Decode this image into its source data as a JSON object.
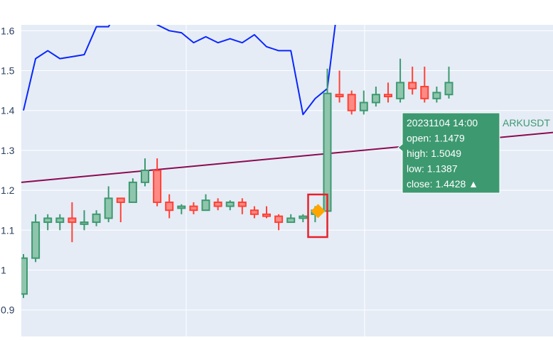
{
  "chart_data": {
    "type": "candlestick",
    "symbol": "ARKUSDT",
    "ylim": [
      0.85,
      1.66
    ],
    "y_ticks": [
      "0.9",
      "1",
      "1.1",
      "1.2",
      "1.3",
      "1.4",
      "1.5",
      "1.6"
    ],
    "grid": true,
    "candles": [
      {
        "o": 0.94,
        "h": 1.04,
        "l": 0.93,
        "c": 1.03
      },
      {
        "o": 1.03,
        "h": 1.14,
        "l": 1.02,
        "c": 1.12
      },
      {
        "o": 1.12,
        "h": 1.14,
        "l": 1.1,
        "c": 1.13
      },
      {
        "o": 1.12,
        "h": 1.14,
        "l": 1.1,
        "c": 1.13
      },
      {
        "o": 1.13,
        "h": 1.17,
        "l": 1.07,
        "c": 1.12
      },
      {
        "o": 1.115,
        "h": 1.15,
        "l": 1.1,
        "c": 1.12
      },
      {
        "o": 1.12,
        "h": 1.15,
        "l": 1.11,
        "c": 1.14
      },
      {
        "o": 1.13,
        "h": 1.21,
        "l": 1.12,
        "c": 1.18
      },
      {
        "o": 1.18,
        "h": 1.18,
        "l": 1.12,
        "c": 1.17
      },
      {
        "o": 1.17,
        "h": 1.23,
        "l": 1.17,
        "c": 1.22
      },
      {
        "o": 1.22,
        "h": 1.28,
        "l": 1.21,
        "c": 1.25
      },
      {
        "o": 1.25,
        "h": 1.28,
        "l": 1.16,
        "c": 1.17
      },
      {
        "o": 1.17,
        "h": 1.19,
        "l": 1.13,
        "c": 1.15
      },
      {
        "o": 1.155,
        "h": 1.165,
        "l": 1.14,
        "c": 1.16
      },
      {
        "o": 1.16,
        "h": 1.17,
        "l": 1.14,
        "c": 1.15
      },
      {
        "o": 1.15,
        "h": 1.19,
        "l": 1.15,
        "c": 1.175
      },
      {
        "o": 1.17,
        "h": 1.18,
        "l": 1.15,
        "c": 1.16
      },
      {
        "o": 1.16,
        "h": 1.175,
        "l": 1.15,
        "c": 1.17
      },
      {
        "o": 1.17,
        "h": 1.18,
        "l": 1.14,
        "c": 1.16
      },
      {
        "o": 1.15,
        "h": 1.16,
        "l": 1.13,
        "c": 1.14
      },
      {
        "o": 1.14,
        "h": 1.16,
        "l": 1.13,
        "c": 1.135
      },
      {
        "o": 1.135,
        "h": 1.14,
        "l": 1.1,
        "c": 1.12
      },
      {
        "o": 1.12,
        "h": 1.14,
        "l": 1.12,
        "c": 1.13
      },
      {
        "o": 1.13,
        "h": 1.14,
        "l": 1.12,
        "c": 1.135
      },
      {
        "o": 1.14,
        "h": 1.16,
        "l": 1.12,
        "c": 1.15
      },
      {
        "o": 1.1479,
        "h": 1.5049,
        "l": 1.1387,
        "c": 1.4428
      },
      {
        "o": 1.44,
        "h": 1.5,
        "l": 1.42,
        "c": 1.435
      },
      {
        "o": 1.44,
        "h": 1.45,
        "l": 1.39,
        "c": 1.4
      },
      {
        "o": 1.4,
        "h": 1.45,
        "l": 1.39,
        "c": 1.42
      },
      {
        "o": 1.42,
        "h": 1.46,
        "l": 1.41,
        "c": 1.44
      },
      {
        "o": 1.44,
        "h": 1.47,
        "l": 1.42,
        "c": 1.435
      },
      {
        "o": 1.43,
        "h": 1.53,
        "l": 1.42,
        "c": 1.47
      },
      {
        "o": 1.47,
        "h": 1.51,
        "l": 1.44,
        "c": 1.455
      },
      {
        "o": 1.46,
        "h": 1.51,
        "l": 1.42,
        "c": 1.43
      },
      {
        "o": 1.43,
        "h": 1.46,
        "l": 1.42,
        "c": 1.445
      },
      {
        "o": 1.44,
        "h": 1.51,
        "l": 1.43,
        "c": 1.47
      }
    ],
    "blue_line": [
      1.4,
      1.53,
      1.55,
      1.53,
      1.535,
      1.54,
      1.61,
      1.61,
      1.67,
      1.67,
      1.67,
      1.615,
      1.6,
      1.595,
      1.57,
      1.585,
      1.57,
      1.58,
      1.57,
      1.59,
      1.56,
      1.55,
      1.55,
      1.39,
      1.43,
      1.455,
      1.7
    ],
    "purple_line": {
      "start": 1.22,
      "end": 1.345
    },
    "marker": {
      "index": 25,
      "value": 1.148
    },
    "tooltip": {
      "lines": [
        "20231104 14:00",
        "open: 1.1479",
        "high: 1.5049",
        "low: 1.1387",
        "close: 1.4428  ▲"
      ],
      "label": "ARKUSDT"
    },
    "colors": {
      "increasing": "#3d9970",
      "decreasing": "#ff4136",
      "blue_line": "#0a26ff",
      "purple_line": "#8b0a50",
      "marker": "#ffa500",
      "highlight_box": "#e8202a",
      "plot_bg": "#e5ecf6"
    }
  }
}
